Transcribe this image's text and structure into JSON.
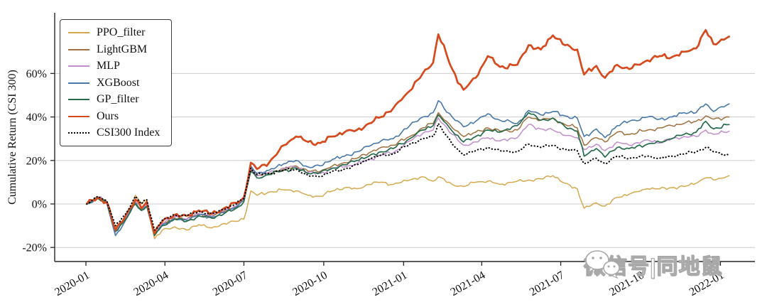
{
  "watermark": {
    "text": "微信号|同地鼠",
    "icon": "wechat-icon"
  },
  "chart_data": {
    "type": "line",
    "title": "",
    "xlabel": "",
    "ylabel": "Cumulative Return (CSI 300)",
    "grid": "horizontal-light-gray",
    "legend_position": "upper-left",
    "x_unit": "days since 2020-01-01",
    "xlim": [
      -36,
      771
    ],
    "ylim": [
      -26,
      85
    ],
    "x_ticks": [
      {
        "label": "2020-01",
        "day": 0
      },
      {
        "label": "2020-04",
        "day": 91
      },
      {
        "label": "2020-07",
        "day": 182
      },
      {
        "label": "2020-10",
        "day": 274
      },
      {
        "label": "2021-01",
        "day": 366
      },
      {
        "label": "2021-04",
        "day": 456
      },
      {
        "label": "2021-07",
        "day": 547
      },
      {
        "label": "2021-10",
        "day": 639
      },
      {
        "label": "2022-01",
        "day": 731
      }
    ],
    "y_ticks": [
      {
        "label": "-20%",
        "value": -20
      },
      {
        "label": "0%",
        "value": 0
      },
      {
        "label": "20%",
        "value": 20
      },
      {
        "label": "40%",
        "value": 40
      },
      {
        "label": "60%",
        "value": 60
      }
    ],
    "x": [
      1,
      14,
      24,
      34,
      45,
      57,
      64,
      70,
      79,
      88,
      102,
      116,
      130,
      145,
      159,
      173,
      182,
      190,
      197,
      211,
      228,
      242,
      256,
      270,
      284,
      298,
      312,
      326,
      340,
      354,
      373,
      388,
      400,
      406,
      422,
      435,
      449,
      463,
      477,
      497,
      510,
      524,
      538,
      552,
      566,
      574,
      588,
      598,
      612,
      626,
      647,
      661,
      675,
      689,
      703,
      714,
      723,
      741
    ],
    "series": [
      {
        "name": "PPO_filter",
        "color": "#d7a94f",
        "style": "solid",
        "width": 1.5,
        "values": [
          0,
          2.5,
          0.5,
          -13,
          -7,
          4,
          0,
          2,
          -16,
          -12,
          -10.5,
          -12,
          -9.5,
          -11,
          -9,
          -8,
          -7,
          6,
          4,
          5.5,
          6.5,
          6,
          4,
          3.5,
          6,
          7.5,
          7,
          9,
          10,
          9,
          11,
          12.5,
          10.5,
          12.5,
          9,
          8,
          10,
          10.5,
          9,
          10.5,
          11,
          11.5,
          13,
          9.5,
          7,
          -2,
          0.5,
          -1,
          3,
          4.5,
          7,
          7,
          7.5,
          8,
          9.5,
          12,
          11,
          13
        ]
      },
      {
        "name": "LightGBM",
        "color": "#a0703d",
        "style": "solid",
        "width": 1.5,
        "values": [
          0,
          3,
          1,
          -12,
          -7,
          1,
          -2.5,
          0,
          -14,
          -9,
          -6.5,
          -7,
          -4.5,
          -5.5,
          -3.5,
          -1,
          2,
          16,
          13,
          14,
          16,
          17.5,
          15,
          15,
          17.5,
          19,
          21,
          23.5,
          26,
          27,
          31,
          35,
          37,
          42,
          35,
          31,
          33,
          35,
          33.5,
          34,
          40,
          38.5,
          39.5,
          36.5,
          35,
          27,
          30.5,
          28.5,
          33,
          32,
          34,
          35,
          36,
          37,
          38,
          40.5,
          39,
          40
        ]
      },
      {
        "name": "MLP",
        "color": "#bf8fcc",
        "style": "solid",
        "width": 1.5,
        "values": [
          0,
          3,
          1,
          -13,
          -7,
          1,
          -2,
          0,
          -14,
          -9,
          -6,
          -7,
          -4.5,
          -5.5,
          -3,
          -1,
          2,
          16.5,
          13,
          14.5,
          16.5,
          17,
          14.5,
          14,
          16.5,
          17,
          18.5,
          20.5,
          22.5,
          23.5,
          29,
          32.5,
          34,
          39.5,
          32,
          27,
          28.5,
          30.5,
          29,
          30.5,
          36.5,
          34.5,
          34,
          31.5,
          30.5,
          25,
          27.5,
          24.5,
          28.5,
          27,
          29.5,
          28,
          30,
          31,
          31,
          34,
          32,
          33.5
        ]
      },
      {
        "name": "XGBoost",
        "color": "#4878a8",
        "style": "solid",
        "width": 1.6,
        "values": [
          0,
          3,
          0.5,
          -14.5,
          -8,
          0.5,
          -3,
          -1,
          -14,
          -9.5,
          -7,
          -7.5,
          -5,
          -6,
          -4,
          -1.5,
          1.5,
          17.5,
          14,
          15.5,
          18.5,
          20,
          17,
          17.5,
          20.5,
          22,
          24,
          26.5,
          29,
          30,
          36,
          40,
          42,
          47.5,
          40,
          35.5,
          38,
          41.5,
          38.5,
          37,
          43,
          41,
          42.5,
          40.5,
          39.5,
          31,
          34.5,
          30.5,
          36,
          38,
          40,
          39,
          40,
          42,
          42,
          46,
          42.5,
          46
        ]
      },
      {
        "name": "GP_filter",
        "color": "#256b4c",
        "style": "solid",
        "width": 1.7,
        "values": [
          0,
          2.5,
          0.5,
          -12.5,
          -7.5,
          0,
          -3,
          -1,
          -14.5,
          -10,
          -7,
          -8,
          -5.5,
          -6.5,
          -4.5,
          -2,
          1,
          15,
          12,
          13.5,
          15.5,
          16.5,
          14,
          14.5,
          16.5,
          18,
          20,
          22,
          24,
          25.5,
          30,
          34,
          36,
          41,
          33.5,
          28.5,
          31,
          34,
          33,
          36,
          42,
          38.5,
          39.5,
          35.5,
          33.5,
          22,
          25.5,
          21.5,
          26,
          25.5,
          27.5,
          28.5,
          30,
          32,
          33,
          38,
          34.5,
          36.5
        ]
      },
      {
        "name": "Ours",
        "color": "#d64a1e",
        "style": "solid",
        "width": 2.7,
        "values": [
          0,
          3,
          1,
          -12,
          -6,
          2,
          -2,
          1,
          -13.5,
          -8,
          -5,
          -5.5,
          -3,
          -4.5,
          -2,
          0.5,
          3,
          19,
          16,
          19,
          27,
          31,
          28.5,
          28,
          31,
          33,
          34,
          37,
          40,
          44,
          52,
          60,
          65,
          78,
          62,
          52.5,
          58,
          68,
          63,
          64,
          73,
          71,
          77.5,
          73,
          71,
          59.5,
          63.5,
          58,
          64,
          62,
          66,
          68,
          67.5,
          70,
          71.5,
          80,
          73.5,
          77
        ]
      },
      {
        "name": "CSI300 Index",
        "color": "#000000",
        "style": "dotted",
        "width": 2.1,
        "values": [
          0,
          3.5,
          1.5,
          -10,
          -5,
          3.5,
          0,
          2,
          -12,
          -7.5,
          -5,
          -5.5,
          -3.5,
          -4.5,
          -2.5,
          0,
          2.5,
          16.5,
          13.5,
          14,
          15.5,
          16,
          13,
          12.5,
          15,
          16,
          18,
          20.5,
          22.5,
          23,
          27.5,
          30,
          31,
          37,
          27.5,
          22.5,
          24.5,
          26,
          24.5,
          24,
          27.5,
          26,
          27,
          25,
          24.5,
          18.5,
          21,
          18.5,
          22,
          21,
          22,
          21,
          22,
          23,
          24,
          26,
          24,
          22.5
        ]
      }
    ]
  }
}
